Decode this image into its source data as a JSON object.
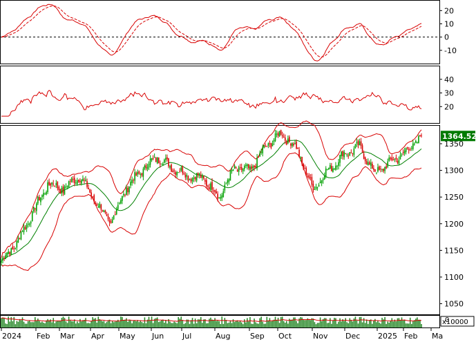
{
  "colors": {
    "background": "#ffffff",
    "axis": "#000000",
    "macd_line": "#d80000",
    "bollinger": "#d80000",
    "sma": "#008000",
    "up_candle": "#00a000",
    "down_candle": "#d80000",
    "last_tag_bg": "#007a00",
    "volume_bar": "#2e8b2e",
    "volume_avg": "#d80000"
  },
  "panels": {
    "macd": {
      "y_ticks": [
        "20",
        "10",
        "0",
        "-10"
      ],
      "ylim": [
        -20,
        28
      ]
    },
    "rsi": {
      "y_ticks": [
        "40",
        "30",
        "20"
      ],
      "ylim": [
        8,
        50
      ]
    },
    "price": {
      "y_ticks": [
        "1350",
        "1300",
        "1250",
        "1200",
        "1150",
        "1100",
        "1050"
      ],
      "ylim": [
        1030,
        1385
      ],
      "last_value": "1364.520"
    },
    "volume": {
      "scale_label": "x10000",
      "y_tick": "0"
    }
  },
  "x_axis": {
    "labels": [
      "2024",
      "Feb",
      "Mar",
      "Apr",
      "May",
      "Jun",
      "Jul",
      "Aug",
      "Sep",
      "Oct",
      "Nov",
      "Dec",
      "2025",
      "Feb",
      "Ma"
    ]
  },
  "chart_data": {
    "type": "candlestick",
    "x_labels": [
      "2024",
      "Feb",
      "Mar",
      "Apr",
      "May",
      "Jun",
      "Jul",
      "Aug",
      "Sep",
      "Oct",
      "Nov",
      "Dec",
      "2025",
      "Feb",
      "Ma"
    ],
    "close_points": [
      {
        "x": "2024",
        "y": 1130
      },
      {
        "x": "Jan mid",
        "y": 1165
      },
      {
        "x": "Feb",
        "y": 1220
      },
      {
        "x": "Feb mid",
        "y": 1275
      },
      {
        "x": "Mar",
        "y": 1265
      },
      {
        "x": "Mar mid",
        "y": 1290
      },
      {
        "x": "Apr",
        "y": 1245
      },
      {
        "x": "Apr mid",
        "y": 1200
      },
      {
        "x": "May",
        "y": 1265
      },
      {
        "x": "May mid",
        "y": 1300
      },
      {
        "x": "Jun",
        "y": 1325
      },
      {
        "x": "Jun mid",
        "y": 1305
      },
      {
        "x": "Jul",
        "y": 1290
      },
      {
        "x": "Jul mid",
        "y": 1285
      },
      {
        "x": "Aug",
        "y": 1250
      },
      {
        "x": "Aug mid",
        "y": 1305
      },
      {
        "x": "Sep",
        "y": 1300
      },
      {
        "x": "Sep mid",
        "y": 1345
      },
      {
        "x": "Oct",
        "y": 1370
      },
      {
        "x": "Oct mid",
        "y": 1340
      },
      {
        "x": "Nov",
        "y": 1265
      },
      {
        "x": "Nov mid",
        "y": 1300
      },
      {
        "x": "Dec",
        "y": 1330
      },
      {
        "x": "Dec mid",
        "y": 1345
      },
      {
        "x": "2025",
        "y": 1295
      },
      {
        "x": "Jan mid",
        "y": 1315
      },
      {
        "x": "Feb",
        "y": 1335
      },
      {
        "x": "Feb end",
        "y": 1364.52
      }
    ],
    "last_close": 1364.52,
    "ylim": [
      1030,
      1385
    ]
  }
}
